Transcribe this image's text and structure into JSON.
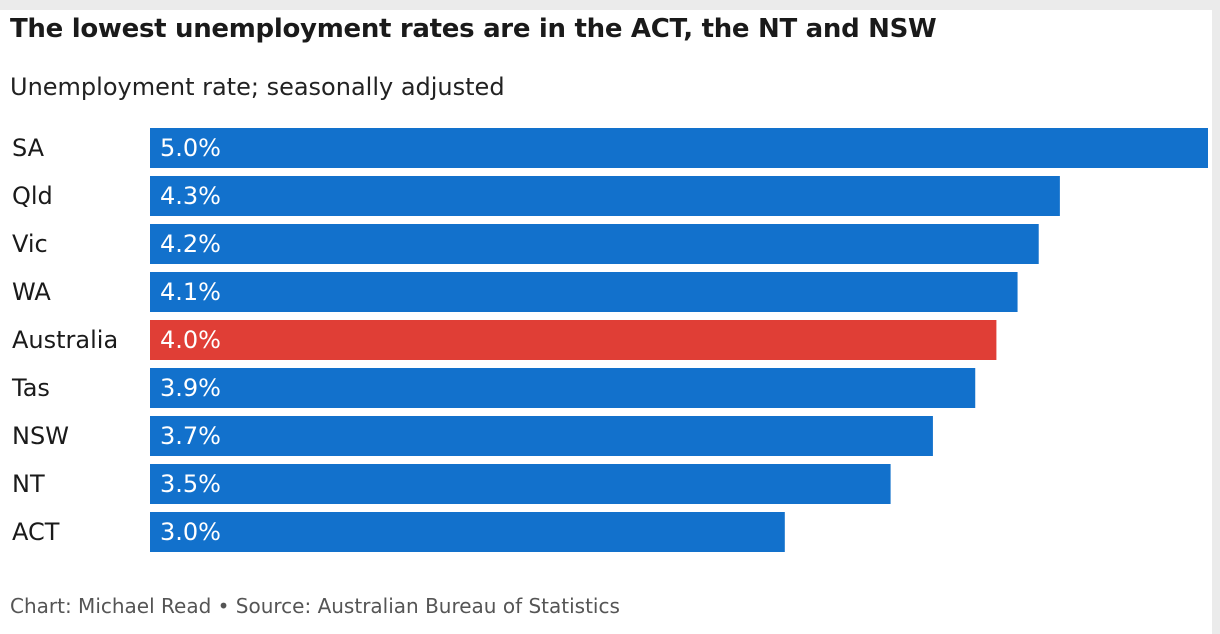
{
  "title": "The lowest unemployment rates are in the ACT, the NT and NSW",
  "subtitle": "Unemployment rate; seasonally adjusted",
  "footer": "Chart: Michael Read • Source: Australian Bureau of Statistics",
  "colors": {
    "bar": "#1271cc",
    "highlight": "#e03e36"
  },
  "chart_data": {
    "type": "bar",
    "orientation": "horizontal",
    "categories": [
      "SA",
      "Qld",
      "Vic",
      "WA",
      "Australia",
      "Tas",
      "NSW",
      "NT",
      "ACT"
    ],
    "values": [
      5.0,
      4.3,
      4.2,
      4.1,
      4.0,
      3.9,
      3.7,
      3.5,
      3.0
    ],
    "value_labels": [
      "5.0%",
      "4.3%",
      "4.2%",
      "4.1%",
      "4.0%",
      "3.9%",
      "3.7%",
      "3.5%",
      "3.0%"
    ],
    "highlight": "Australia",
    "title": "The lowest unemployment rates are in the ACT, the NT and NSW",
    "subtitle": "Unemployment rate; seasonally adjusted",
    "xlabel": "",
    "ylabel": "",
    "xlim": [
      0,
      5.0
    ],
    "grid": false,
    "legend": "none"
  }
}
